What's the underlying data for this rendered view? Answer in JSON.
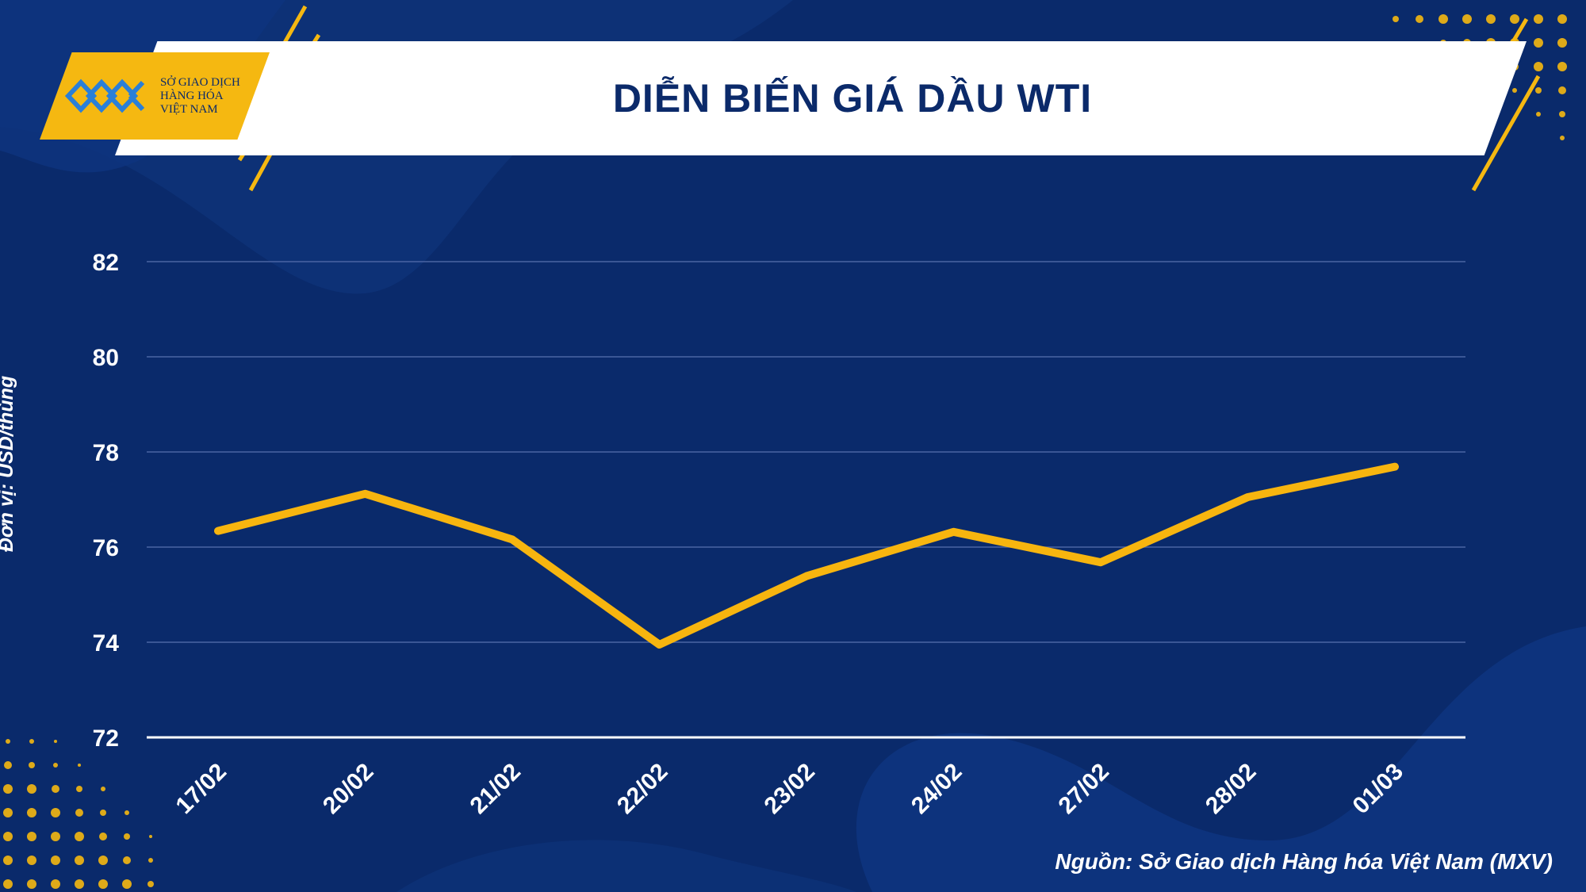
{
  "header": {
    "title": "DIỄN BIẾN GIÁ DẦU WTI",
    "logo_lines": [
      "SỞ GIAO DỊCH",
      "HÀNG HÓA",
      "VIỆT NAM"
    ]
  },
  "colors": {
    "background": "#0a2a6b",
    "accent": "#f5b811",
    "line": "#f7b50f",
    "text": "#ffffff",
    "title": "#0b2a6a"
  },
  "footer": {
    "source": "Nguồn: Sở Giao dịch Hàng hóa Việt Nam (MXV)"
  },
  "chart_data": {
    "type": "line",
    "title": "DIỄN BIẾN GIÁ DẦU WTI",
    "xlabel": "",
    "ylabel": "Đơn vị: USD/thùng",
    "categories": [
      "17/02",
      "20/02",
      "21/02",
      "22/02",
      "23/02",
      "24/02",
      "27/02",
      "28/02",
      "01/03"
    ],
    "series": [
      {
        "values": [
          76.34,
          77.12,
          76.16,
          73.95,
          75.39,
          76.32,
          75.68,
          77.05,
          77.69
        ]
      }
    ],
    "ylim": [
      72,
      82
    ],
    "yticks": [
      72,
      74,
      76,
      78,
      80,
      82
    ],
    "grid": true,
    "legend": "none"
  }
}
